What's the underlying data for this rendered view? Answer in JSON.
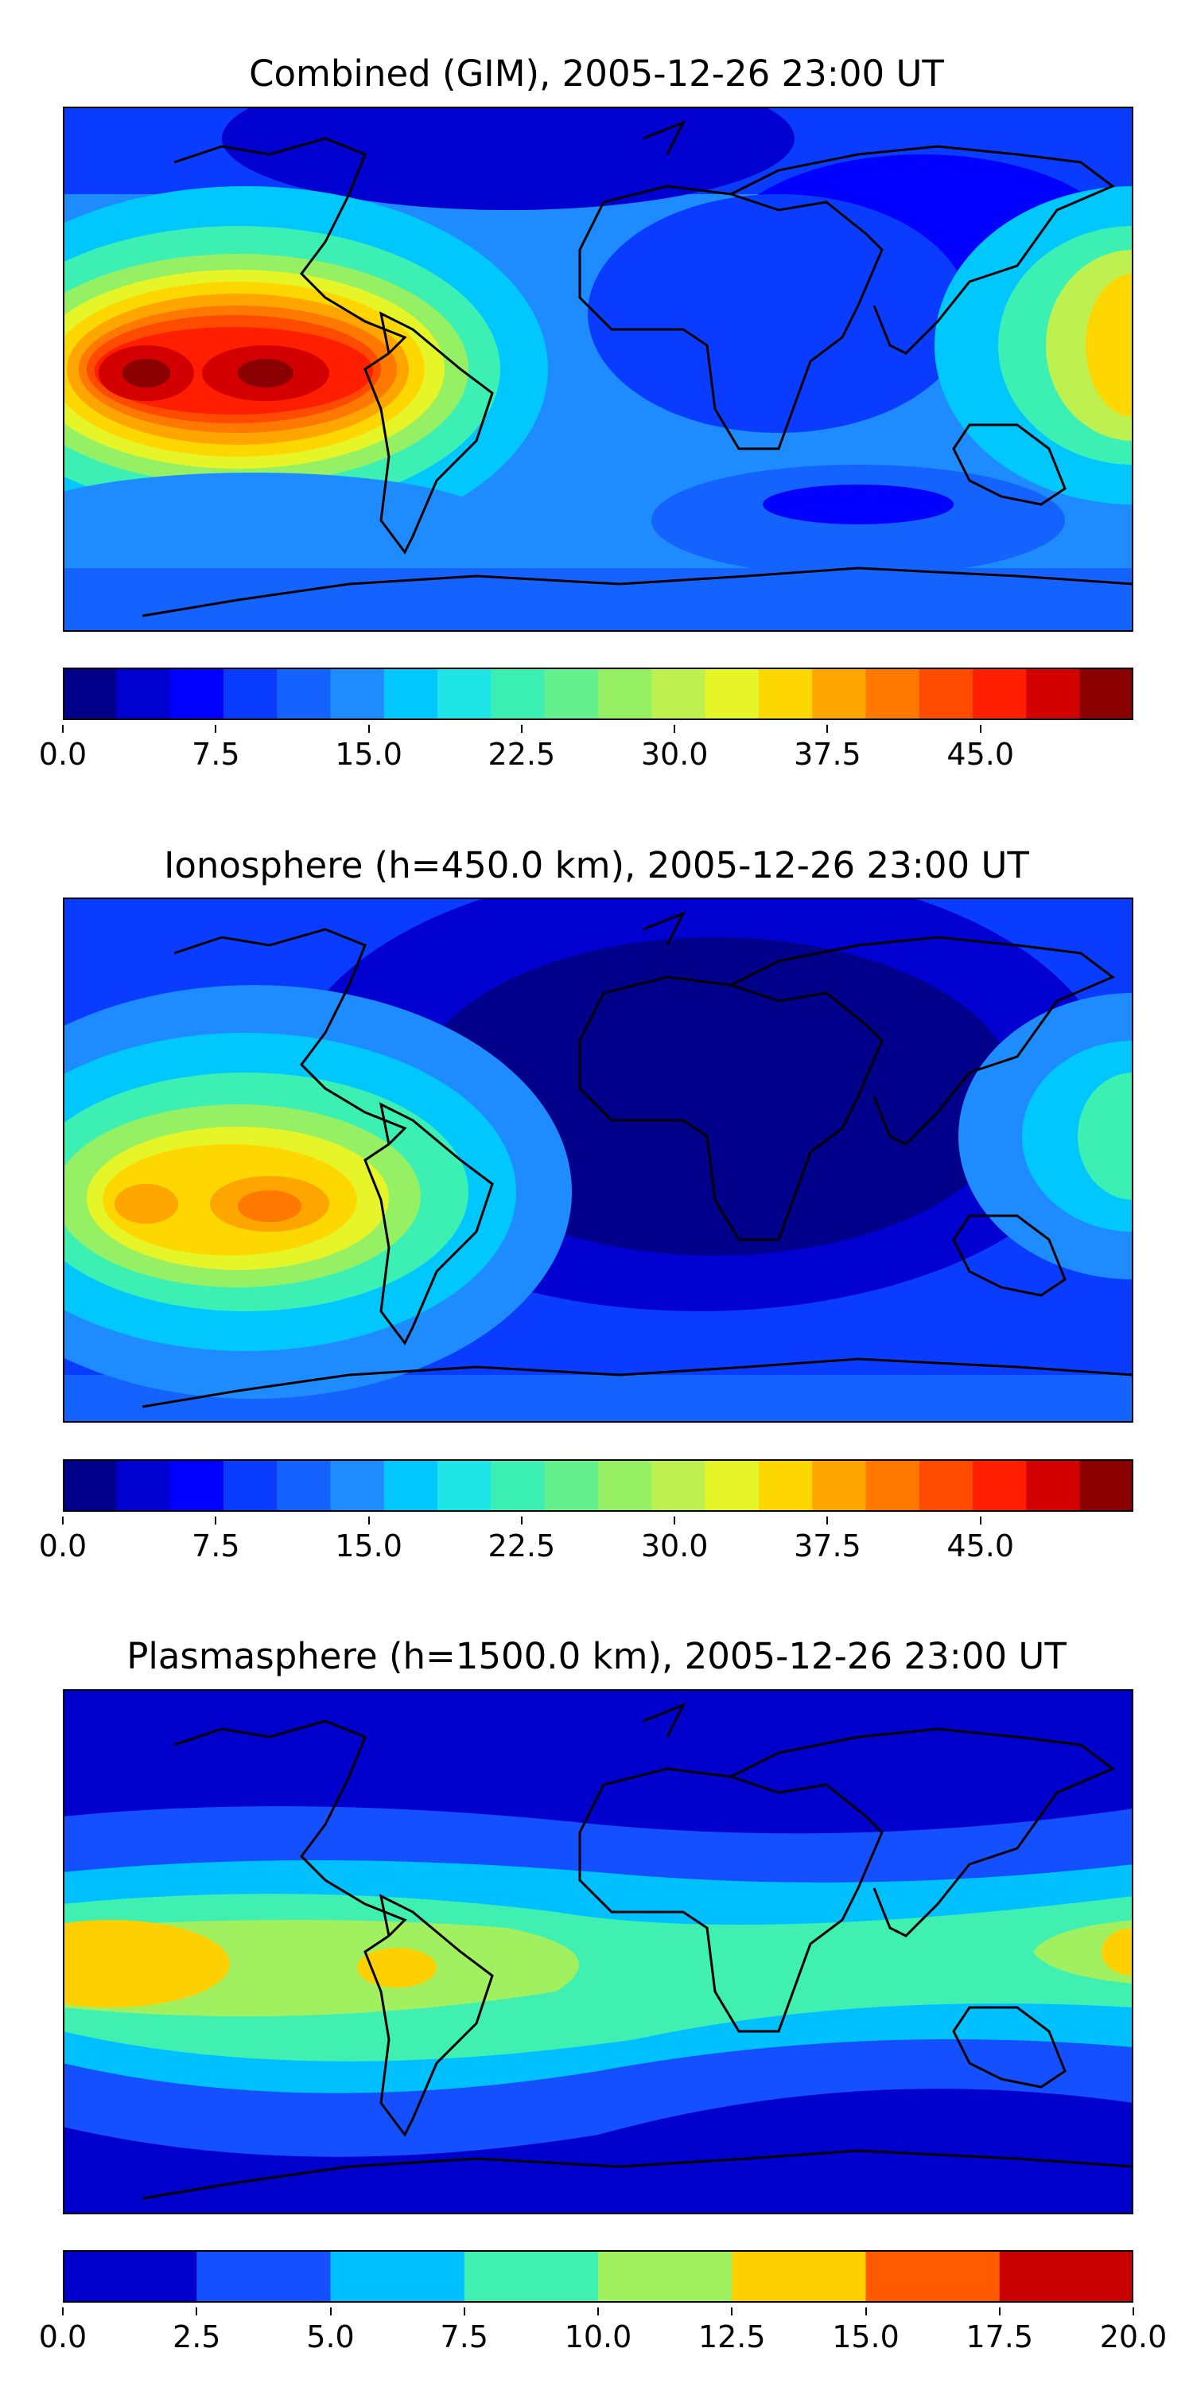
{
  "panels": [
    {
      "title": "Combined (GIM), 2005-12-26 23:00 UT",
      "colorbar_ticks": [
        "0.0",
        "7.5",
        "15.0",
        "22.5",
        "30.0",
        "37.5",
        "45.0"
      ],
      "colorbar_range": [
        0,
        52.5
      ],
      "colorbar_levels": 20
    },
    {
      "title": "Ionosphere  (h=450.0 km), 2005-12-26 23:00 UT",
      "colorbar_ticks": [
        "0.0",
        "7.5",
        "15.0",
        "22.5",
        "30.0",
        "37.5",
        "45.0"
      ],
      "colorbar_range": [
        0,
        52.5
      ],
      "colorbar_levels": 20
    },
    {
      "title": "Plasmasphere (h=1500.0 km), 2005-12-26 23:00 UT",
      "colorbar_ticks": [
        "0.0",
        "2.5",
        "5.0",
        "7.5",
        "10.0",
        "12.5",
        "15.0",
        "17.5",
        "20.0"
      ],
      "colorbar_range": [
        0,
        20
      ],
      "colorbar_levels": 8
    }
  ],
  "colors": {
    "jet20": [
      "#00008b",
      "#0000d0",
      "#0000ff",
      "#0a3cff",
      "#1463ff",
      "#1e8cff",
      "#00c8ff",
      "#1ee6e6",
      "#3cf0b4",
      "#64f08c",
      "#96f064",
      "#bef050",
      "#e6f528",
      "#ffd700",
      "#ffa500",
      "#ff7800",
      "#ff4b00",
      "#ff1e00",
      "#d20000",
      "#8b0000"
    ],
    "jet8": [
      "#0000cd",
      "#1450ff",
      "#00c0ff",
      "#40f0b0",
      "#a0f060",
      "#ffd000",
      "#ff5a00",
      "#c80000"
    ],
    "coastline": "#000000"
  }
}
